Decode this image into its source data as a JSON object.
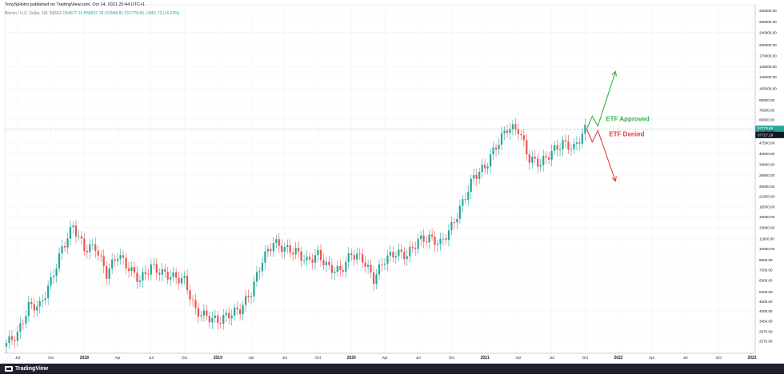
{
  "header": {
    "published": "TonySpilotro published on TradingView.com, Oct 14, 2021 20:44 UTC+1",
    "symbol": "Bitcoin / U.S. Dollar, 1W, INDEX",
    "ohlc": "O54677.19  H58537.78  L53948.81  C57778.66  +3081.72 (+5.63%)"
  },
  "footer": {
    "brand": "TradingView"
  },
  "colors": {
    "up": "#26a69a",
    "down": "#ef5350",
    "approved": "#2fb344",
    "denied": "#e5393b",
    "price_line": "#26a69a",
    "grid": "#f0f3fa",
    "axis_text": "#131722"
  },
  "chart_data": {
    "type": "candlestick",
    "scale": "log",
    "title": "Bitcoin / U.S. Dollar, 1W, INDEX",
    "x_ticks": [
      "Jul",
      "Oct",
      "2018",
      "Apr",
      "Jul",
      "Oct",
      "2019",
      "Apr",
      "Jul",
      "Oct",
      "2020",
      "Apr",
      "Jul",
      "Oct",
      "2021",
      "Apr",
      "Jul",
      "Oct",
      "2022",
      "Apr",
      "Jul",
      "Oct",
      "2023"
    ],
    "y_ticks": [
      "2570.00",
      "2970.00",
      "3450.00",
      "4000.00",
      "4600.00",
      "5300.00",
      "6300.00",
      "7300.00",
      "8500.00",
      "10000.00",
      "11600.00",
      "13600.00",
      "16000.00",
      "18500.00",
      "21500.00",
      "25000.00",
      "29500.00",
      "34500.00",
      "40500.00",
      "47500.00",
      "56000.00",
      "66500.00",
      "76500.00",
      "89000.00",
      "105000.00",
      "125000.00",
      "145000.00",
      "170000.00",
      "200000.00",
      "240000.00",
      "280000.00",
      "330000.00"
    ],
    "y_unit": "USD",
    "current_price": "57778.66",
    "current_price_value": 57778.66,
    "current_price_sub": "1d 3h",
    "current_price_tag2": "57717.19",
    "current_price_tag2_value": 57717.19,
    "close_series": [
      {
        "date": "2017-06",
        "close": 2500
      },
      {
        "date": "2017-07",
        "close": 2850
      },
      {
        "date": "2017-08",
        "close": 4300
      },
      {
        "date": "2017-09",
        "close": 4330
      },
      {
        "date": "2017-10",
        "close": 6200
      },
      {
        "date": "2017-11",
        "close": 10000
      },
      {
        "date": "2017-12",
        "close": 14000
      },
      {
        "date": "2018-01",
        "close": 10000
      },
      {
        "date": "2018-02",
        "close": 10300
      },
      {
        "date": "2018-03",
        "close": 6900
      },
      {
        "date": "2018-04",
        "close": 9200
      },
      {
        "date": "2018-05",
        "close": 7500
      },
      {
        "date": "2018-06",
        "close": 6300
      },
      {
        "date": "2018-07",
        "close": 7700
      },
      {
        "date": "2018-08",
        "close": 7000
      },
      {
        "date": "2018-09",
        "close": 6600
      },
      {
        "date": "2018-10",
        "close": 6300
      },
      {
        "date": "2018-11",
        "close": 4000
      },
      {
        "date": "2018-12",
        "close": 3700
      },
      {
        "date": "2019-01",
        "close": 3450
      },
      {
        "date": "2019-02",
        "close": 3800
      },
      {
        "date": "2019-03",
        "close": 4100
      },
      {
        "date": "2019-04",
        "close": 5300
      },
      {
        "date": "2019-05",
        "close": 8500
      },
      {
        "date": "2019-06",
        "close": 11000
      },
      {
        "date": "2019-07",
        "close": 10000
      },
      {
        "date": "2019-08",
        "close": 9600
      },
      {
        "date": "2019-09",
        "close": 8300
      },
      {
        "date": "2019-10",
        "close": 9200
      },
      {
        "date": "2019-11",
        "close": 7500
      },
      {
        "date": "2019-12",
        "close": 7200
      },
      {
        "date": "2020-01",
        "close": 9300
      },
      {
        "date": "2020-02",
        "close": 8600
      },
      {
        "date": "2020-03",
        "close": 6400
      },
      {
        "date": "2020-04",
        "close": 8600
      },
      {
        "date": "2020-05",
        "close": 9400
      },
      {
        "date": "2020-06",
        "close": 9100
      },
      {
        "date": "2020-07",
        "close": 11300
      },
      {
        "date": "2020-08",
        "close": 11700
      },
      {
        "date": "2020-09",
        "close": 10800
      },
      {
        "date": "2020-10",
        "close": 13800
      },
      {
        "date": "2020-11",
        "close": 19700
      },
      {
        "date": "2020-12",
        "close": 29000
      },
      {
        "date": "2021-01",
        "close": 33100
      },
      {
        "date": "2021-02",
        "close": 45200
      },
      {
        "date": "2021-03",
        "close": 58800
      },
      {
        "date": "2021-04",
        "close": 57700
      },
      {
        "date": "2021-05",
        "close": 37300
      },
      {
        "date": "2021-06",
        "close": 35000
      },
      {
        "date": "2021-07",
        "close": 41500
      },
      {
        "date": "2021-08",
        "close": 47100
      },
      {
        "date": "2021-09",
        "close": 43800
      },
      {
        "date": "2021-10",
        "close": 57778
      }
    ],
    "annotations": [
      {
        "label": "ETF Approved",
        "color": "#2fb344",
        "direction": "up",
        "target": 135000
      },
      {
        "label": "ETF Denied",
        "color": "#e5393b",
        "direction": "down",
        "target": 27000
      }
    ],
    "grid": true,
    "legend": "none"
  }
}
